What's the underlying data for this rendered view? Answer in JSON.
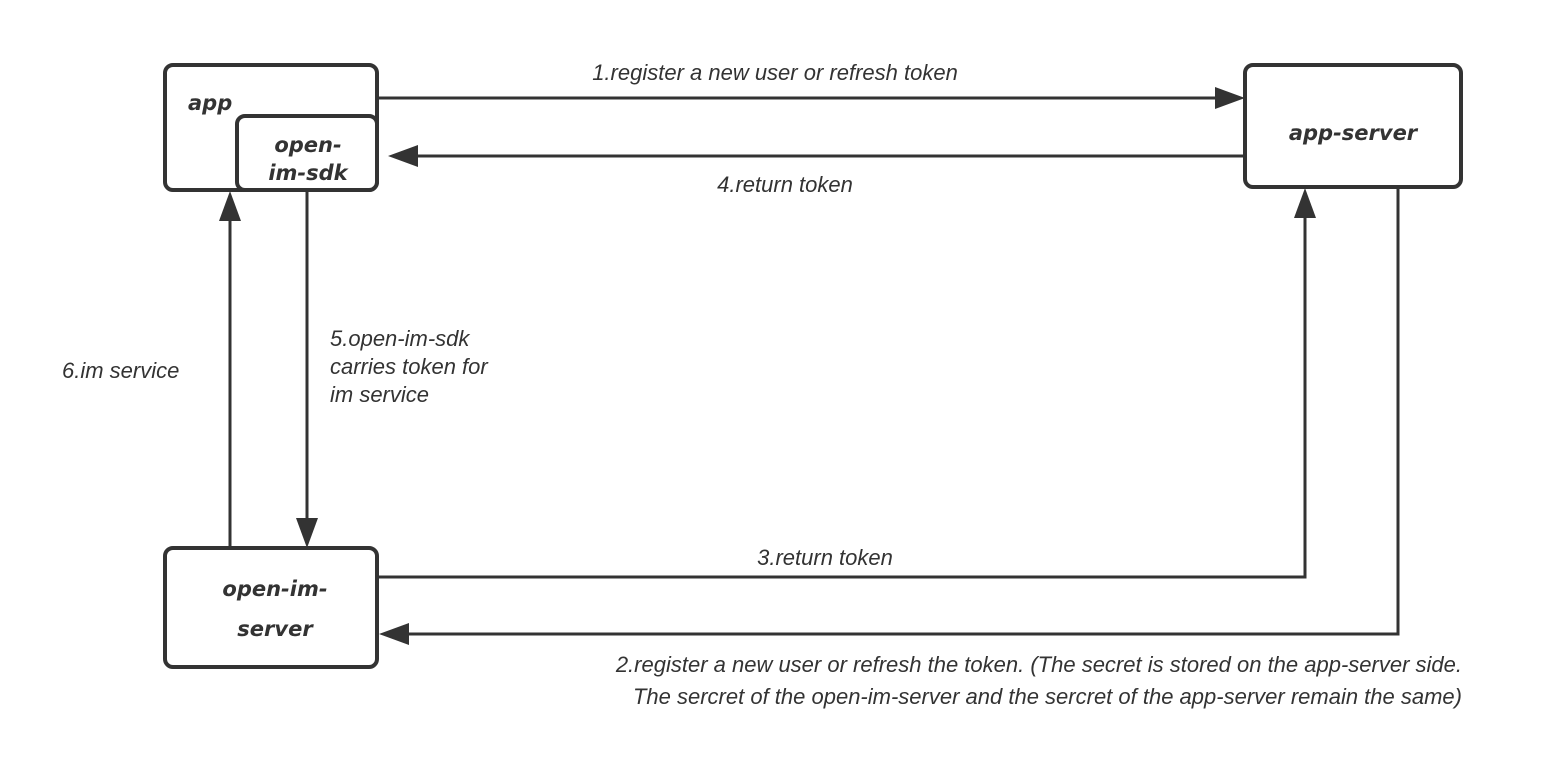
{
  "nodes": {
    "app": "app",
    "sdk": [
      "open-",
      "im-sdk"
    ],
    "app_server": "app-server",
    "im_server": [
      "open-im-",
      "server"
    ]
  },
  "edges": {
    "e1": "1.register a new user or refresh token",
    "e2": [
      "2.register a new user or refresh the token. (The secret is stored on the app-server side.",
      "The sercret of the open-im-server and the sercret of the app-server remain the same)"
    ],
    "e3": "3.return token",
    "e4": "4.return token",
    "e5": [
      "5.open-im-sdk",
      "carries token for",
      "im service"
    ],
    "e6": "6.im service"
  },
  "colors": {
    "stroke": "#333333",
    "background": "#ffffff"
  }
}
